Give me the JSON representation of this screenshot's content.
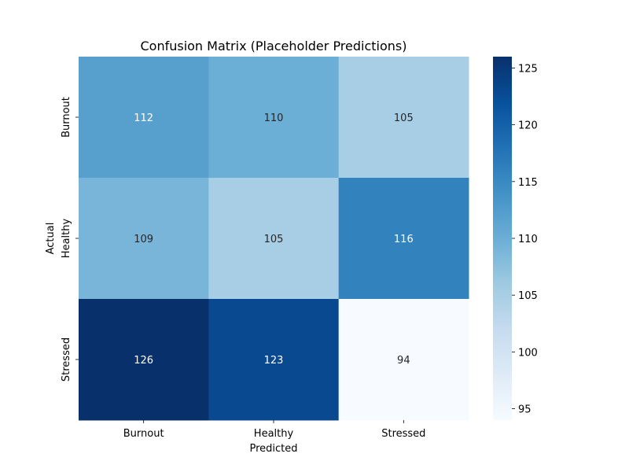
{
  "chart_data": {
    "type": "heatmap",
    "title": "Confusion Matrix (Placeholder Predictions)",
    "xlabel": "Predicted",
    "ylabel": "Actual",
    "x_categories": [
      "Burnout",
      "Healthy",
      "Stressed"
    ],
    "y_categories": [
      "Burnout",
      "Healthy",
      "Stressed"
    ],
    "values": [
      [
        112,
        110,
        105
      ],
      [
        109,
        105,
        116
      ],
      [
        126,
        123,
        94
      ]
    ],
    "colormap": "Blues",
    "vmin": 94,
    "vmax": 126,
    "colorbar_ticks": [
      95,
      100,
      105,
      110,
      115,
      120,
      125
    ],
    "colorbar_tick_labels": [
      "95",
      "100",
      "105",
      "110",
      "115",
      "120",
      "125"
    ]
  }
}
